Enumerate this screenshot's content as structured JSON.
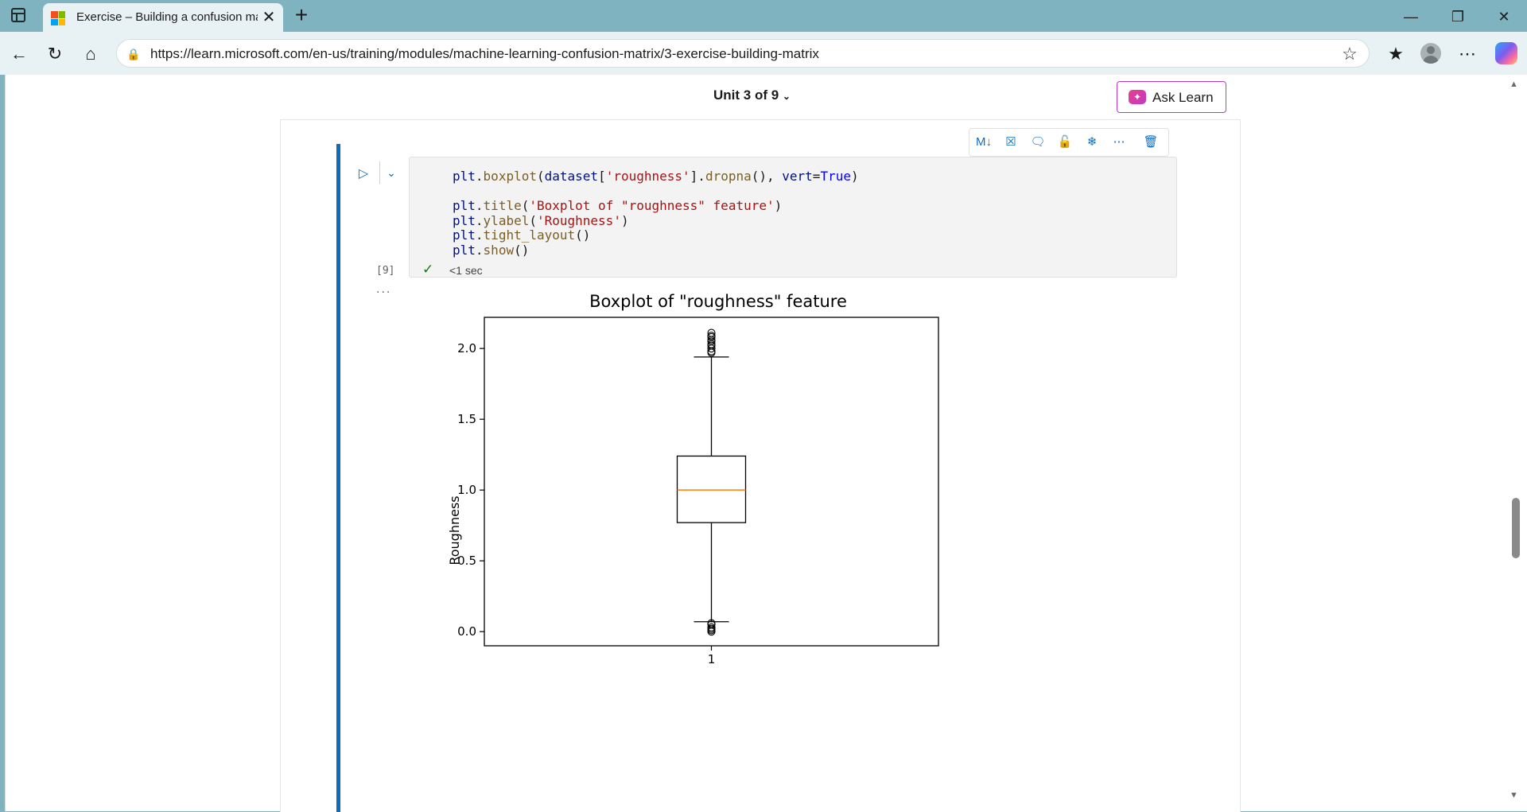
{
  "browser": {
    "tab_title": "Exercise – Building a confusion matrix",
    "url": "https://learn.microsoft.com/en-us/training/modules/machine-learning-confusion-matrix/3-exercise-building-matrix",
    "new_tab_glyph": "+",
    "close_glyph": "✕",
    "icons": [
      "tab-actions-icon",
      "back-icon",
      "refresh-icon",
      "home-icon",
      "lock-icon",
      "favorite-star-icon",
      "favorites-icon",
      "profile-avatar",
      "more-icon",
      "copilot-icon",
      "minimize-icon",
      "restore-icon",
      "close-icon"
    ]
  },
  "page": {
    "unit_nav": "Unit 3 of 9",
    "ask_learn_label": "Ask Learn"
  },
  "cell": {
    "toolbar_markdown": "M↓",
    "code": {
      "line1": "plt.boxplot(dataset['roughness'].dropna(), vert=True)",
      "line2": "plt.title('Boxplot of \"roughness\" feature')",
      "line3": "plt.ylabel('Roughness')",
      "line4": "plt.tight_layout()",
      "line5": "plt.show()"
    },
    "exec_count": "[9]",
    "exec_time": "<1 sec",
    "output_more": "..."
  },
  "chart_data": {
    "type": "boxplot",
    "title": "Boxplot of \"roughness\" feature",
    "xlabel": "",
    "ylabel": "Roughness",
    "categories": [
      "1"
    ],
    "yticks": [
      "0.0",
      "0.5",
      "1.0",
      "1.5",
      "2.0"
    ],
    "ylim": [
      -0.1,
      2.22
    ],
    "grid": false,
    "box": {
      "whisker_low": 0.07,
      "q1": 0.77,
      "median": 1.0,
      "q3": 1.24,
      "whisker_high": 1.94
    },
    "outliers_high": [
      1.97,
      1.98,
      2.0,
      2.02,
      2.03,
      2.05,
      2.06,
      2.08,
      2.09,
      2.11
    ],
    "outliers_low": [
      0.0,
      0.01,
      0.02,
      0.03,
      0.05,
      0.06
    ],
    "colors": {
      "median": "#ff7f0e",
      "box": "#000000"
    }
  }
}
